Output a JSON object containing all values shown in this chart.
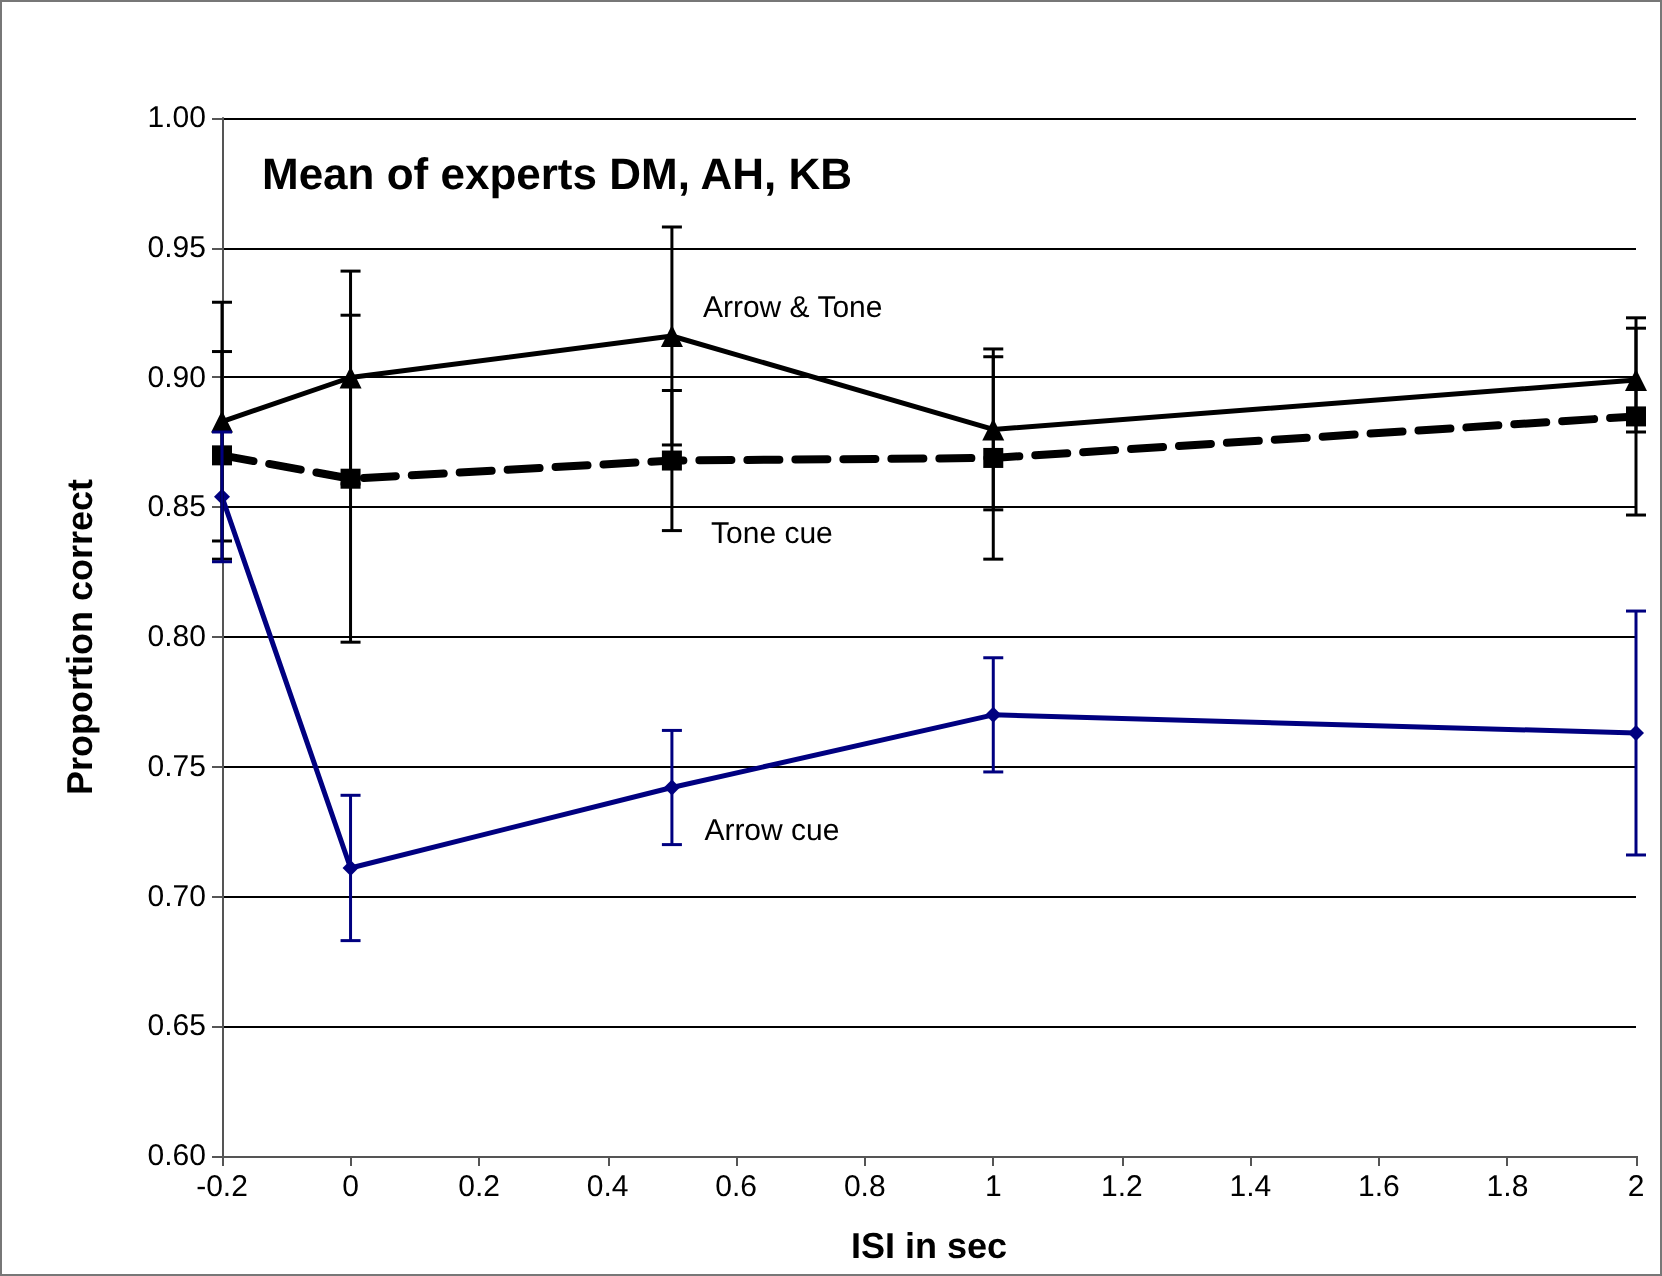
{
  "chart_data": {
    "type": "line",
    "title": "Mean of experts DM, AH, KB",
    "xlabel": "ISI in sec",
    "ylabel": "Proportion correct",
    "x": [
      -0.2,
      0,
      0.5,
      1,
      2
    ],
    "series": [
      {
        "name": "Arrow & Tone",
        "color": "#000000",
        "marker": "triangle",
        "line_style": "solid",
        "values": [
          0.883,
          0.9,
          0.916,
          0.88,
          0.899
        ],
        "errors": [
          0.046,
          0.041,
          0.042,
          0.031,
          0.02
        ]
      },
      {
        "name": "Tone cue",
        "color": "#000000",
        "marker": "square",
        "line_style": "dashed",
        "values": [
          0.87,
          0.861,
          0.868,
          0.869,
          0.885
        ],
        "errors": [
          0.04,
          0.063,
          0.027,
          0.039,
          0.038
        ]
      },
      {
        "name": "Arrow cue",
        "color": "#000080",
        "marker": "diamond",
        "line_style": "solid",
        "values": [
          0.854,
          0.711,
          0.742,
          0.77,
          0.763
        ],
        "errors": [
          0.025,
          0.028,
          0.022,
          0.022,
          0.047
        ]
      }
    ],
    "xlim": [
      -0.2,
      2
    ],
    "xticks": [
      -0.2,
      0,
      0.2,
      0.4,
      0.6,
      0.8,
      1,
      1.2,
      1.4,
      1.6,
      1.8,
      2
    ],
    "ylim": [
      0.6,
      1.0
    ],
    "yticks": [
      {
        "value": 0.6,
        "label": "0.60"
      },
      {
        "value": 0.65,
        "label": "0.65"
      },
      {
        "value": 0.7,
        "label": "0.70"
      },
      {
        "value": 0.75,
        "label": "0.75"
      },
      {
        "value": 0.8,
        "label": "0.80"
      },
      {
        "value": 0.85,
        "label": "0.85"
      },
      {
        "value": 0.9,
        "label": "0.90"
      },
      {
        "value": 0.95,
        "label": "0.95"
      },
      {
        "value": 1.0,
        "label": "1.00"
      }
    ],
    "grid": "y",
    "legend": false
  }
}
